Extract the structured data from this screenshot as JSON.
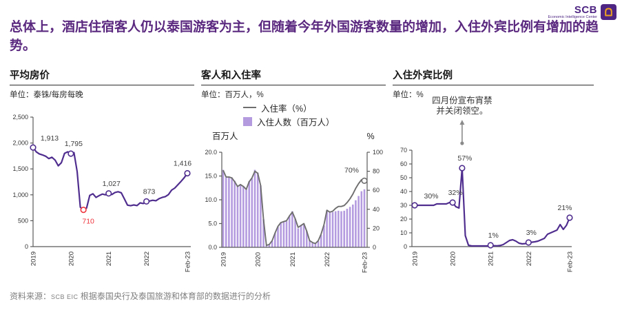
{
  "header": {
    "logo_brand": "SCB",
    "logo_subtitle": "Economic Intelligence Center",
    "title": "总体上，酒店住宿客人仍以泰国游客为主，但随着今年外国游客数量的增加，入住外宾比例有增加的趋势。"
  },
  "footer": {
    "source_label": "资料来源：",
    "source_brand": "SCB EIC",
    "source_text": "根据泰国央行及泰国旅游和体育部的数据进行的分析"
  },
  "colors": {
    "brand_purple": "#5a287f",
    "series_purple": "#4f2d8f",
    "bar_purple": "#b49bdf",
    "gray_line": "#6e6e6e",
    "red": "#ee333c",
    "axis": "#595959",
    "tick_text": "#333333",
    "annotation_gray": "#8a8a8a"
  },
  "chart_data": [
    {
      "type": "line",
      "title": "平均房价",
      "unit": "单位：泰铢/每房每晚",
      "x_axis": {
        "labels": [
          "2019",
          "2020",
          "2021",
          "2022",
          "Feb-23"
        ],
        "indices": [
          0,
          12,
          24,
          36,
          49
        ]
      },
      "ylim": [
        0,
        2500
      ],
      "y_ticks": [
        {
          "v": 0,
          "label": "0"
        },
        {
          "v": 500,
          "label": "500"
        },
        {
          "v": 1000,
          "label": "1,000"
        },
        {
          "v": 1500,
          "label": "1,500"
        },
        {
          "v": 2000,
          "label": "2,000"
        },
        {
          "v": 2500,
          "label": "2,500"
        }
      ],
      "values": [
        1913,
        1830,
        1790,
        1770,
        1745,
        1700,
        1725,
        1670,
        1560,
        1620,
        1800,
        1830,
        1795,
        1815,
        1450,
        760,
        710,
        745,
        990,
        1020,
        950,
        985,
        1015,
        1000,
        1027,
        1005,
        1045,
        1060,
        1040,
        920,
        800,
        790,
        805,
        792,
        845,
        832,
        873,
        880,
        895,
        885,
        925,
        950,
        965,
        1005,
        1090,
        1130,
        1195,
        1260,
        1330,
        1416
      ],
      "callouts": [
        {
          "i": 0,
          "label": "1,913",
          "pos": "above-right"
        },
        {
          "i": 12,
          "label": "1,795",
          "pos": "above"
        },
        {
          "i": 16,
          "label": "710",
          "pos": "below",
          "color": "red"
        },
        {
          "i": 24,
          "label": "1,027",
          "pos": "above"
        },
        {
          "i": 36,
          "label": "873",
          "pos": "above"
        },
        {
          "i": 49,
          "label": "1,416",
          "pos": "above-left"
        }
      ]
    },
    {
      "type": "combo",
      "title": "客人和入住率",
      "unit": "单位：百万人，%",
      "legend": [
        {
          "label": "入住率（%）",
          "swatch": "line"
        },
        {
          "label": "入住人数（百万人）",
          "swatch": "bar"
        }
      ],
      "left_axis_title": "百万人",
      "right_axis_title": "%",
      "ylim_left": [
        0,
        20
      ],
      "y_ticks_left": [
        {
          "v": 0,
          "label": "0.0"
        },
        {
          "v": 5,
          "label": "5.0"
        },
        {
          "v": 10,
          "label": "10.0"
        },
        {
          "v": 15,
          "label": "15.0"
        },
        {
          "v": 20,
          "label": "20.0"
        }
      ],
      "ylim_right": [
        0,
        100
      ],
      "y_ticks_right": [
        {
          "v": 0,
          "label": "0"
        },
        {
          "v": 20,
          "label": "20"
        },
        {
          "v": 40,
          "label": "40"
        },
        {
          "v": 60,
          "label": "60"
        },
        {
          "v": 80,
          "label": "80"
        },
        {
          "v": 100,
          "label": "100"
        }
      ],
      "x_axis": {
        "labels": [
          "2019",
          "2020",
          "2021",
          "2022",
          "Feb-23"
        ],
        "indices": [
          0,
          12,
          24,
          36,
          49
        ]
      },
      "bars_name": "入住人数（百万人）",
      "bars": [
        16.3,
        14.7,
        14.8,
        14.7,
        14.0,
        12.9,
        13.2,
        12.9,
        12.2,
        13.9,
        14.5,
        16.3,
        15.7,
        13.0,
        5.9,
        0.4,
        0.5,
        1.3,
        3.0,
        4.3,
        5.2,
        5.3,
        5.5,
        6.5,
        7.6,
        6.0,
        4.0,
        4.6,
        5.0,
        3.4,
        1.4,
        0.9,
        0.8,
        1.3,
        2.6,
        4.6,
        7.8,
        7.3,
        7.4,
        7.6,
        7.7,
        7.6,
        7.7,
        8.1,
        8.5,
        9.0,
        9.9,
        10.8,
        11.8,
        12.2
      ],
      "line_name": "入住率（%）",
      "line": [
        81,
        74,
        74,
        73,
        69,
        64,
        66,
        64,
        61,
        69,
        73,
        80,
        78,
        65,
        29,
        2,
        3,
        7,
        15,
        22,
        26,
        27,
        28,
        33,
        37,
        30,
        21,
        23,
        25,
        17,
        7,
        5,
        4,
        7,
        14,
        24,
        39,
        37,
        38,
        41,
        43,
        43,
        44,
        47,
        51,
        56,
        62,
        67,
        71,
        70
      ],
      "callouts": [
        {
          "i": 49,
          "label": "70%",
          "pos": "left"
        }
      ]
    },
    {
      "type": "line",
      "title": "入住外宾比例",
      "unit": "单位：%",
      "annotation": {
        "lines": [
          "四月份宣布宵禁",
          "并关闭领空。"
        ],
        "point_index": 15
      },
      "x_axis": {
        "labels": [
          "2019",
          "2020",
          "2021",
          "2022",
          "Feb-23"
        ],
        "indices": [
          0,
          12,
          24,
          36,
          49
        ]
      },
      "ylim": [
        0,
        70
      ],
      "y_ticks": [
        {
          "v": 0,
          "label": "0"
        },
        {
          "v": 10,
          "label": "10"
        },
        {
          "v": 20,
          "label": "20"
        },
        {
          "v": 30,
          "label": "30"
        },
        {
          "v": 40,
          "label": "40"
        },
        {
          "v": 50,
          "label": "50"
        },
        {
          "v": 60,
          "label": "60"
        },
        {
          "v": 70,
          "label": "70"
        }
      ],
      "values": [
        30,
        30,
        30,
        30,
        30,
        30,
        30,
        31,
        31,
        31,
        31,
        32,
        32,
        29,
        28,
        57,
        8,
        1,
        0.5,
        0.5,
        0.5,
        0.5,
        0.5,
        0.5,
        1,
        0.7,
        0.6,
        0.8,
        1.5,
        3,
        4.5,
        5,
        4,
        2.5,
        2,
        2.2,
        3,
        3.2,
        3.5,
        4,
        5,
        6,
        9,
        10,
        11,
        12,
        16,
        12.5,
        15.5,
        21
      ],
      "callouts": [
        {
          "i": 0,
          "label": "30%",
          "pos": "above-right"
        },
        {
          "i": 12,
          "label": "32%",
          "pos": "above"
        },
        {
          "i": 15,
          "label": "57%",
          "pos": "above"
        },
        {
          "i": 24,
          "label": "1%",
          "pos": "above"
        },
        {
          "i": 36,
          "label": "3%",
          "pos": "above"
        },
        {
          "i": 49,
          "label": "21%",
          "pos": "above-left"
        }
      ]
    }
  ]
}
